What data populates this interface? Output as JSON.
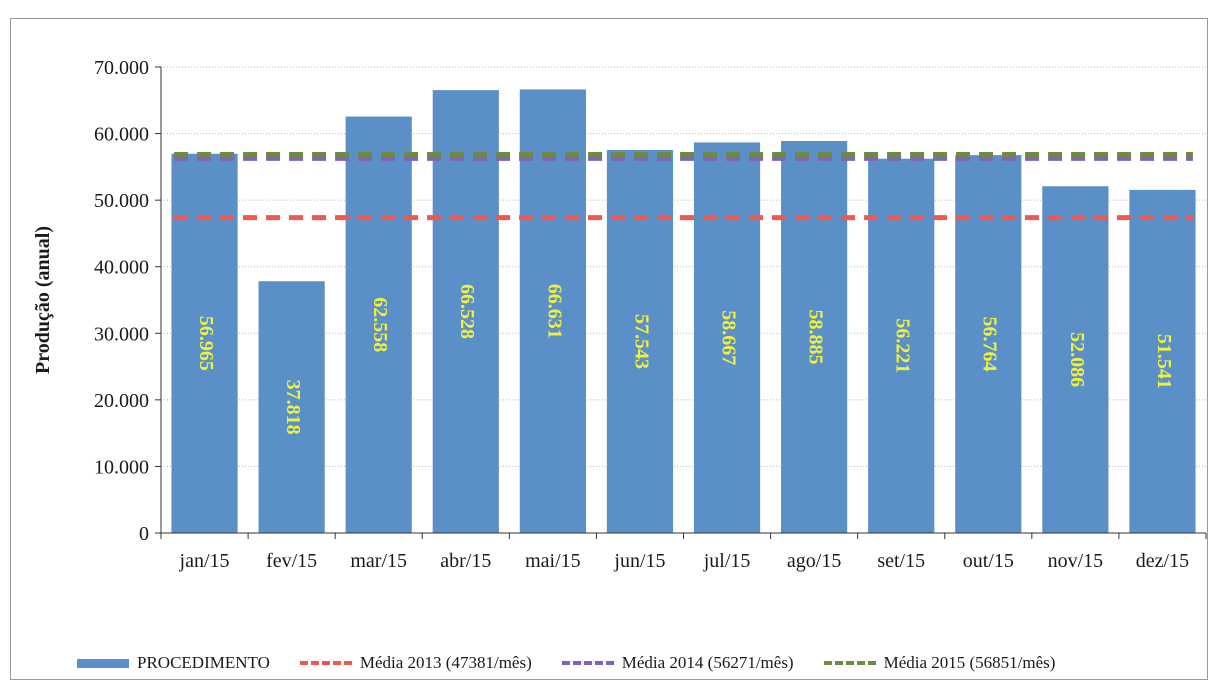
{
  "chart_data": {
    "type": "bar",
    "ylabel": "Produção  (anual)",
    "ylim": [
      0,
      70000
    ],
    "yticks": [
      0,
      10000,
      20000,
      30000,
      40000,
      50000,
      60000,
      70000
    ],
    "ytick_labels": [
      "0",
      "10.000",
      "20.000",
      "30.000",
      "40.000",
      "50.000",
      "60.000",
      "70.000"
    ],
    "grid": "horizontal dotted",
    "legend_position": "bottom",
    "categories": [
      "jan/15",
      "fev/15",
      "mar/15",
      "abr/15",
      "mai/15",
      "jun/15",
      "jul/15",
      "ago/15",
      "set/15",
      "out/15",
      "nov/15",
      "dez/15"
    ],
    "series": [
      {
        "name": "PROCEDIMENTO",
        "kind": "bar",
        "color": "#5b8fc8",
        "values": [
          56965,
          37818,
          62558,
          66528,
          66631,
          57543,
          58667,
          58885,
          56221,
          56764,
          52086,
          51541
        ],
        "labels": [
          "56.965",
          "37.818",
          "62.558",
          "66.528",
          "66.631",
          "57.543",
          "58.667",
          "58.885",
          "56.221",
          "56.764",
          "52.086",
          "51.541"
        ],
        "label_color": "#f2f23a"
      },
      {
        "name": "Média 2013 (47381/mês)",
        "kind": "dashed-line",
        "color": "#f0574f",
        "value": 47381
      },
      {
        "name": "Média 2014 (56271/mês)",
        "kind": "dashed-line",
        "color": "#7f63b8",
        "value": 56271
      },
      {
        "name": "Média 2015 (56851/mês)",
        "kind": "dashed-line",
        "color": "#6f8a45",
        "value": 56851
      }
    ]
  }
}
